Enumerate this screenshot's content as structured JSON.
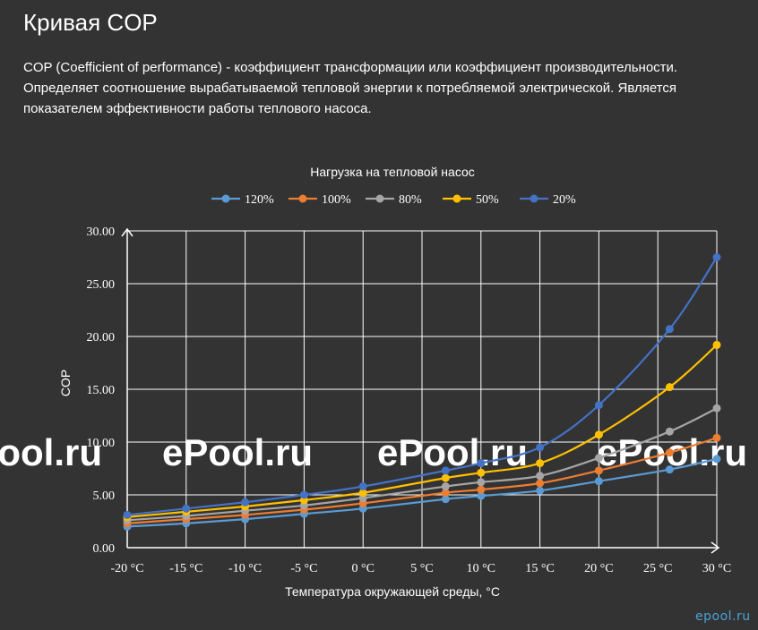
{
  "page": {
    "title": "Кривая COP",
    "description": [
      "COP (Coefficient of performance) - коэффициент трансформации или коэффициент производительности.",
      "Определяет соотношение вырабатываемой тепловой энергии к потребляемой электрической. Является",
      "показателем эффективности работы теплового насоса."
    ],
    "watermark": "ePool.ru",
    "corner_watermark": "epool.ru"
  },
  "chart_data": {
    "type": "line",
    "title": "Нагрузка на тепловой насос",
    "xlabel": "Температура окружающей среды, °C",
    "ylabel": "COP",
    "categories": [
      "-20 °C",
      "-15 °C",
      "-10 °C",
      "-5 °C",
      "0 °C",
      "5 °C",
      "10 °C",
      "15 °C",
      "20 °C",
      "25 °C",
      "30 °C"
    ],
    "ylim": [
      0,
      30
    ],
    "yticks": [
      "0.00",
      "5.00",
      "10.00",
      "15.00",
      "20.00",
      "25.00",
      "30.00"
    ],
    "grid": true,
    "legend": "top",
    "series": [
      {
        "name": "120%",
        "color": "#5b9bd5",
        "x": [
          -20,
          -15,
          -10,
          -5,
          0,
          7,
          10,
          15,
          20,
          26,
          30
        ],
        "y": [
          2.0,
          2.3,
          2.7,
          3.2,
          3.7,
          4.6,
          4.9,
          5.4,
          6.3,
          7.4,
          8.4
        ]
      },
      {
        "name": "100%",
        "color": "#ed7d31",
        "x": [
          -20,
          -15,
          -10,
          -5,
          0,
          7,
          10,
          15,
          20,
          26,
          30
        ],
        "y": [
          2.3,
          2.7,
          3.1,
          3.6,
          4.2,
          5.2,
          5.5,
          6.1,
          7.3,
          9.0,
          10.4
        ]
      },
      {
        "name": "80%",
        "color": "#a5a5a5",
        "x": [
          -20,
          -15,
          -10,
          -5,
          0,
          7,
          10,
          15,
          20,
          26,
          30
        ],
        "y": [
          2.6,
          3.0,
          3.5,
          4.0,
          4.7,
          5.8,
          6.2,
          6.8,
          8.5,
          11.0,
          13.2
        ]
      },
      {
        "name": "50%",
        "color": "#ffc000",
        "x": [
          -20,
          -15,
          -10,
          -5,
          0,
          7,
          10,
          15,
          20,
          26,
          30
        ],
        "y": [
          2.9,
          3.4,
          3.9,
          4.5,
          5.2,
          6.6,
          7.1,
          8.0,
          10.7,
          15.2,
          19.2
        ]
      },
      {
        "name": "20%",
        "color": "#4472c4",
        "x": [
          -20,
          -15,
          -10,
          -5,
          0,
          7,
          10,
          15,
          20,
          26,
          30
        ],
        "y": [
          3.1,
          3.7,
          4.3,
          5.0,
          5.8,
          7.3,
          8.0,
          9.5,
          13.5,
          20.7,
          27.5
        ]
      }
    ]
  }
}
